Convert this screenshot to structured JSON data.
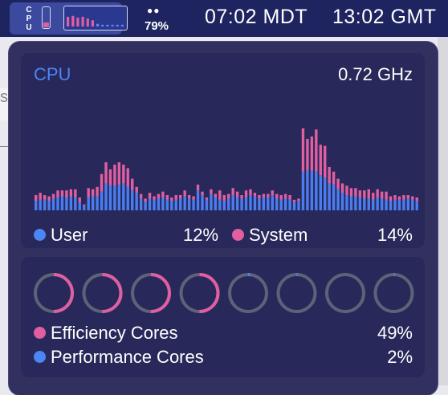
{
  "menubar": {
    "cpu_letters": "C\nP\nU",
    "battery_dots": "●●",
    "battery_percent": "79%",
    "clock_local": "07:02 MDT",
    "clock_utc": "13:02 GMT",
    "mini_gauge_level": 0.28,
    "mini_hist_bars": [
      0.55,
      0.6,
      0.5,
      0.55,
      0.45,
      0.35,
      0.15,
      0.1,
      0.1,
      0.1,
      0.1,
      0.1
    ]
  },
  "background": {
    "edge_letter": "s"
  },
  "cpu_panel": {
    "title": "CPU",
    "frequency": "0.72 GHz",
    "user_label": "User",
    "user_value": "12%",
    "system_label": "System",
    "system_value": "14%"
  },
  "cores_panel": {
    "efficiency_label": "Efficiency Cores",
    "efficiency_value": "49%",
    "performance_label": "Performance Cores",
    "performance_value": "2%",
    "cores": [
      {
        "type": "efficiency",
        "load": 0.5
      },
      {
        "type": "efficiency",
        "load": 0.5
      },
      {
        "type": "efficiency",
        "load": 0.5
      },
      {
        "type": "efficiency",
        "load": 0.5
      },
      {
        "type": "performance",
        "load": 0.02
      },
      {
        "type": "performance",
        "load": 0.01
      },
      {
        "type": "performance",
        "load": 0.0
      },
      {
        "type": "performance",
        "load": 0.01
      }
    ]
  },
  "chart_data": {
    "type": "bar",
    "stacked": true,
    "ylim": [
      0,
      100
    ],
    "series": [
      {
        "name": "User",
        "values": [
          8,
          9,
          9,
          8,
          10,
          11,
          12,
          11,
          12,
          11,
          7,
          4,
          11,
          12,
          12,
          16,
          23,
          21,
          21,
          22,
          23,
          20,
          17,
          15,
          10,
          7,
          10,
          9,
          10,
          11,
          9,
          8,
          9,
          10,
          12,
          10,
          9,
          17,
          13,
          9,
          14,
          11,
          9,
          8,
          10,
          13,
          11,
          10,
          11,
          13,
          12,
          10,
          11,
          11,
          13,
          10,
          9,
          10,
          9,
          7,
          8,
          33,
          34,
          34,
          33,
          30,
          28,
          23,
          22,
          18,
          15,
          13,
          12,
          12,
          11,
          10,
          10,
          9,
          11,
          10,
          9,
          8,
          9,
          9,
          9,
          10,
          9,
          8
        ]
      },
      {
        "name": "System",
        "values": [
          5,
          6,
          4,
          4,
          4,
          6,
          5,
          6,
          6,
          7,
          4,
          1,
          8,
          6,
          8,
          15,
          18,
          14,
          18,
          19,
          16,
          16,
          10,
          5,
          4,
          3,
          5,
          3,
          4,
          5,
          4,
          3,
          4,
          3,
          5,
          3,
          3,
          5,
          3,
          2,
          4,
          3,
          8,
          5,
          4,
          6,
          5,
          3,
          6,
          5,
          3,
          3,
          3,
          3,
          4,
          4,
          4,
          4,
          4,
          2,
          2,
          37,
          27,
          29,
          36,
          26,
          27,
          14,
          11,
          9,
          8,
          8,
          7,
          7,
          6,
          7,
          8,
          6,
          7,
          6,
          7,
          4,
          4,
          3,
          4,
          3,
          3,
          3
        ]
      }
    ],
    "colors": {
      "user": "#4a7ef0",
      "system": "#e05fa0"
    }
  },
  "colors": {
    "accent_blue": "#4d85f5",
    "system_pink": "#e05fa0",
    "efficiency_pink": "#e05fa0",
    "performance_blue": "#4a7ef0",
    "ring_track": "#5e6276"
  }
}
